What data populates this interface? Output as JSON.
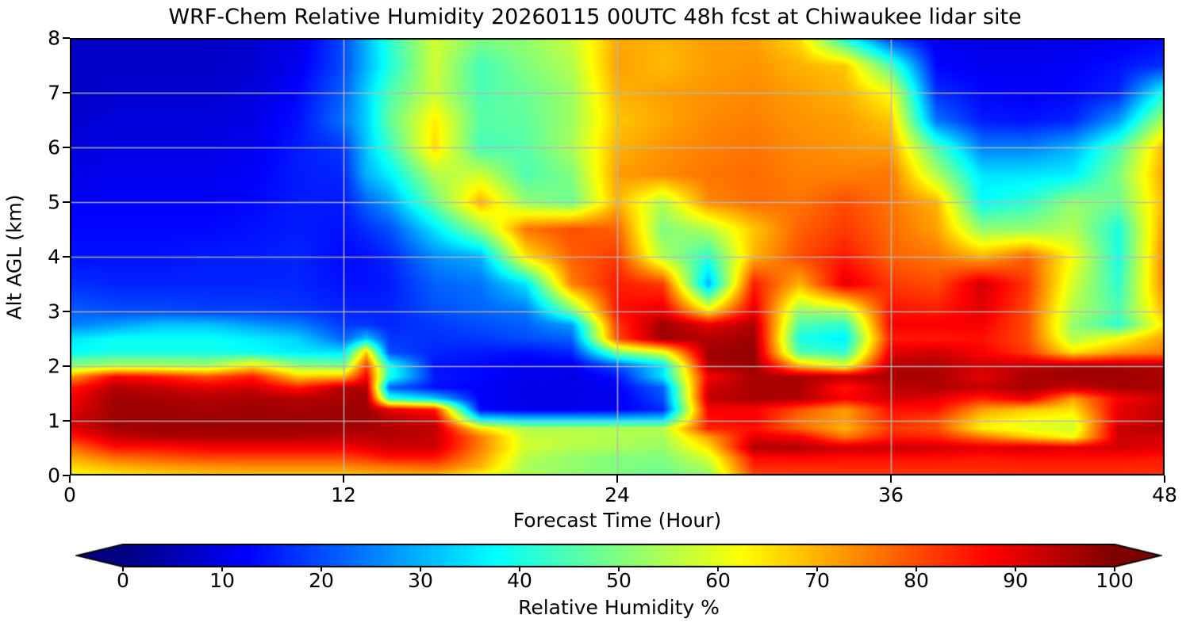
{
  "header": {
    "title": "WRF-Chem Relative Humidity 20260115 00UTC 48h fcst at Chiwaukee lidar site"
  },
  "axes": {
    "xlabel": "Forecast Time (Hour)",
    "ylabel": "Alt AGL (km)",
    "x_ticks": [
      0,
      12,
      24,
      36,
      48
    ],
    "y_ticks": [
      0,
      1,
      2,
      3,
      4,
      5,
      6,
      7,
      8
    ],
    "grid_color": "#b8b8b8"
  },
  "colorbar": {
    "label": "Relative Humidity %",
    "ticks": [
      0,
      10,
      20,
      30,
      40,
      50,
      60,
      70,
      80,
      90,
      100
    ],
    "min": 0,
    "max": 100,
    "colormap": "jet",
    "extend": "both",
    "under_color": "#000080",
    "over_color": "#800000"
  },
  "chart_data": {
    "type": "heatmap",
    "title": "WRF-Chem Relative Humidity 20260115 00UTC 48h fcst at Chiwaukee lidar site",
    "xlabel": "Forecast Time (Hour)",
    "ylabel": "Alt AGL (km)",
    "legend": "Relative Humidity %",
    "xlim": [
      0,
      48
    ],
    "ylim": [
      0,
      8
    ],
    "vlim": [
      0,
      100
    ],
    "grid": true,
    "x_hours": [
      0,
      2,
      4,
      6,
      8,
      10,
      12,
      13,
      14,
      16,
      18,
      20,
      22,
      24,
      26,
      28,
      30,
      32,
      34,
      36,
      38,
      40,
      42,
      44,
      46,
      48
    ],
    "y_alt_km": [
      0,
      0.15,
      0.3,
      0.5,
      0.7,
      0.85,
      1.0,
      1.2,
      1.4,
      1.6,
      1.8,
      2.0,
      2.25,
      2.5,
      2.75,
      3.0,
      3.5,
      4.0,
      4.5,
      5.0,
      5.5,
      6.0,
      6.5,
      7.0,
      7.5,
      8.0
    ],
    "values_rh_percent": [
      [
        62,
        64,
        66,
        68,
        68,
        68,
        68,
        69,
        70,
        70,
        62,
        55,
        52,
        50,
        48,
        52,
        80,
        82,
        82,
        82,
        82,
        82,
        83,
        83,
        83,
        82
      ],
      [
        66,
        70,
        72,
        73,
        74,
        74,
        74,
        75,
        76,
        78,
        70,
        54,
        52,
        50,
        49,
        55,
        84,
        84,
        84,
        84,
        84,
        84,
        84,
        84,
        84,
        84
      ],
      [
        70,
        76,
        78,
        80,
        80,
        80,
        80,
        82,
        85,
        85,
        72,
        55,
        52,
        50,
        50,
        58,
        86,
        87,
        86,
        86,
        86,
        85,
        86,
        86,
        86,
        85
      ],
      [
        76,
        86,
        86,
        88,
        88,
        88,
        88,
        90,
        92,
        92,
        75,
        58,
        55,
        54,
        52,
        65,
        95,
        95,
        92,
        93,
        92,
        90,
        92,
        90,
        92,
        90
      ],
      [
        85,
        93,
        95,
        95,
        95,
        95,
        94,
        94,
        95,
        93,
        75,
        57,
        56,
        55,
        54,
        72,
        90,
        88,
        76,
        85,
        84,
        76,
        68,
        62,
        92,
        92
      ],
      [
        90,
        96,
        97,
        97,
        97,
        97,
        96,
        96,
        95,
        94,
        65,
        55,
        55,
        55,
        55,
        84,
        86,
        78,
        70,
        82,
        80,
        64,
        60,
        58,
        93,
        95
      ],
      [
        92,
        97,
        97,
        97,
        97,
        97,
        97,
        97,
        95,
        92,
        40,
        35,
        35,
        35,
        36,
        86,
        88,
        76,
        72,
        84,
        80,
        66,
        62,
        60,
        90,
        94
      ],
      [
        90,
        97,
        97,
        96,
        97,
        96,
        97,
        97,
        90,
        85,
        13,
        11,
        11,
        12,
        16,
        88,
        88,
        80,
        72,
        86,
        86,
        72,
        68,
        65,
        90,
        94
      ],
      [
        88,
        97,
        96,
        95,
        96,
        95,
        96,
        97,
        42,
        33,
        12,
        10,
        10,
        11,
        20,
        93,
        96,
        95,
        88,
        92,
        90,
        84,
        90,
        72,
        88,
        92
      ],
      [
        85,
        95,
        93,
        90,
        92,
        85,
        95,
        95,
        22,
        14,
        12,
        10,
        10,
        12,
        22,
        92,
        96,
        96,
        85,
        94,
        95,
        93,
        96,
        93,
        96,
        96
      ],
      [
        72,
        88,
        85,
        80,
        85,
        68,
        70,
        88,
        40,
        15,
        13,
        11,
        10,
        14,
        35,
        88,
        96,
        96,
        94,
        96,
        96,
        90,
        96,
        97,
        97,
        96
      ],
      [
        52,
        55,
        55,
        54,
        65,
        52,
        50,
        82,
        40,
        14,
        13,
        11,
        11,
        20,
        35,
        95,
        98,
        70,
        60,
        95,
        95,
        92,
        94,
        96,
        96,
        95
      ],
      [
        38,
        40,
        40,
        40,
        38,
        36,
        35,
        68,
        20,
        16,
        15,
        14,
        16,
        50,
        60,
        97,
        98,
        45,
        42,
        90,
        92,
        88,
        82,
        65,
        72,
        75
      ],
      [
        35,
        38,
        38,
        38,
        36,
        33,
        22,
        32,
        18,
        17,
        18,
        20,
        22,
        80,
        97,
        95,
        97,
        40,
        36,
        85,
        85,
        86,
        80,
        55,
        62,
        72
      ],
      [
        25,
        28,
        32,
        32,
        28,
        25,
        18,
        18,
        16,
        18,
        20,
        22,
        28,
        82,
        97,
        90,
        95,
        45,
        42,
        88,
        88,
        88,
        80,
        52,
        42,
        65
      ],
      [
        22,
        20,
        20,
        19,
        19,
        18,
        16,
        16,
        16,
        20,
        22,
        24,
        48,
        86,
        90,
        65,
        90,
        52,
        55,
        86,
        85,
        90,
        80,
        55,
        45,
        70
      ],
      [
        17,
        16,
        16,
        16,
        16,
        16,
        14,
        14,
        15,
        22,
        24,
        35,
        75,
        85,
        82,
        30,
        85,
        70,
        90,
        82,
        80,
        92,
        82,
        58,
        42,
        75
      ],
      [
        14,
        14,
        14,
        15,
        15,
        16,
        13,
        14,
        16,
        26,
        30,
        65,
        78,
        82,
        55,
        42,
        70,
        80,
        85,
        78,
        76,
        70,
        78,
        62,
        40,
        75
      ],
      [
        13,
        13,
        13,
        13,
        14,
        15,
        14,
        17,
        20,
        35,
        52,
        76,
        80,
        78,
        50,
        55,
        68,
        78,
        82,
        77,
        72,
        52,
        52,
        55,
        40,
        73
      ],
      [
        12,
        12,
        12,
        12,
        13,
        15,
        15,
        22,
        28,
        48,
        70,
        52,
        48,
        70,
        55,
        74,
        77,
        76,
        80,
        76,
        70,
        38,
        42,
        52,
        48,
        70
      ],
      [
        10,
        11,
        11,
        11,
        12,
        15,
        16,
        30,
        36,
        55,
        58,
        45,
        50,
        72,
        74,
        76,
        77,
        75,
        75,
        76,
        55,
        35,
        35,
        36,
        50,
        72
      ],
      [
        9,
        10,
        10,
        10,
        11,
        15,
        18,
        32,
        43,
        66,
        44,
        46,
        54,
        70,
        73,
        75,
        76,
        74,
        73,
        72,
        45,
        25,
        25,
        30,
        45,
        70
      ],
      [
        8,
        9,
        9,
        9,
        10,
        14,
        24,
        33,
        47,
        64,
        46,
        47,
        53,
        68,
        71,
        74,
        75,
        73,
        72,
        68,
        24,
        15,
        14,
        16,
        28,
        55
      ],
      [
        7,
        8,
        8,
        8,
        9,
        13,
        22,
        33,
        45,
        57,
        45,
        48,
        53,
        70,
        72,
        73,
        74,
        72,
        70,
        62,
        17,
        13,
        12,
        13,
        16,
        40
      ],
      [
        7,
        7,
        7,
        7,
        8,
        11,
        20,
        30,
        40,
        58,
        44,
        50,
        55,
        72,
        69,
        72,
        73,
        70,
        68,
        45,
        13,
        11,
        11,
        12,
        14,
        17
      ],
      [
        7,
        7,
        7,
        7,
        8,
        10,
        20,
        30,
        42,
        58,
        50,
        52,
        57,
        71,
        70,
        72,
        72,
        66,
        40,
        18,
        11,
        10,
        10,
        10,
        11,
        13
      ]
    ]
  }
}
